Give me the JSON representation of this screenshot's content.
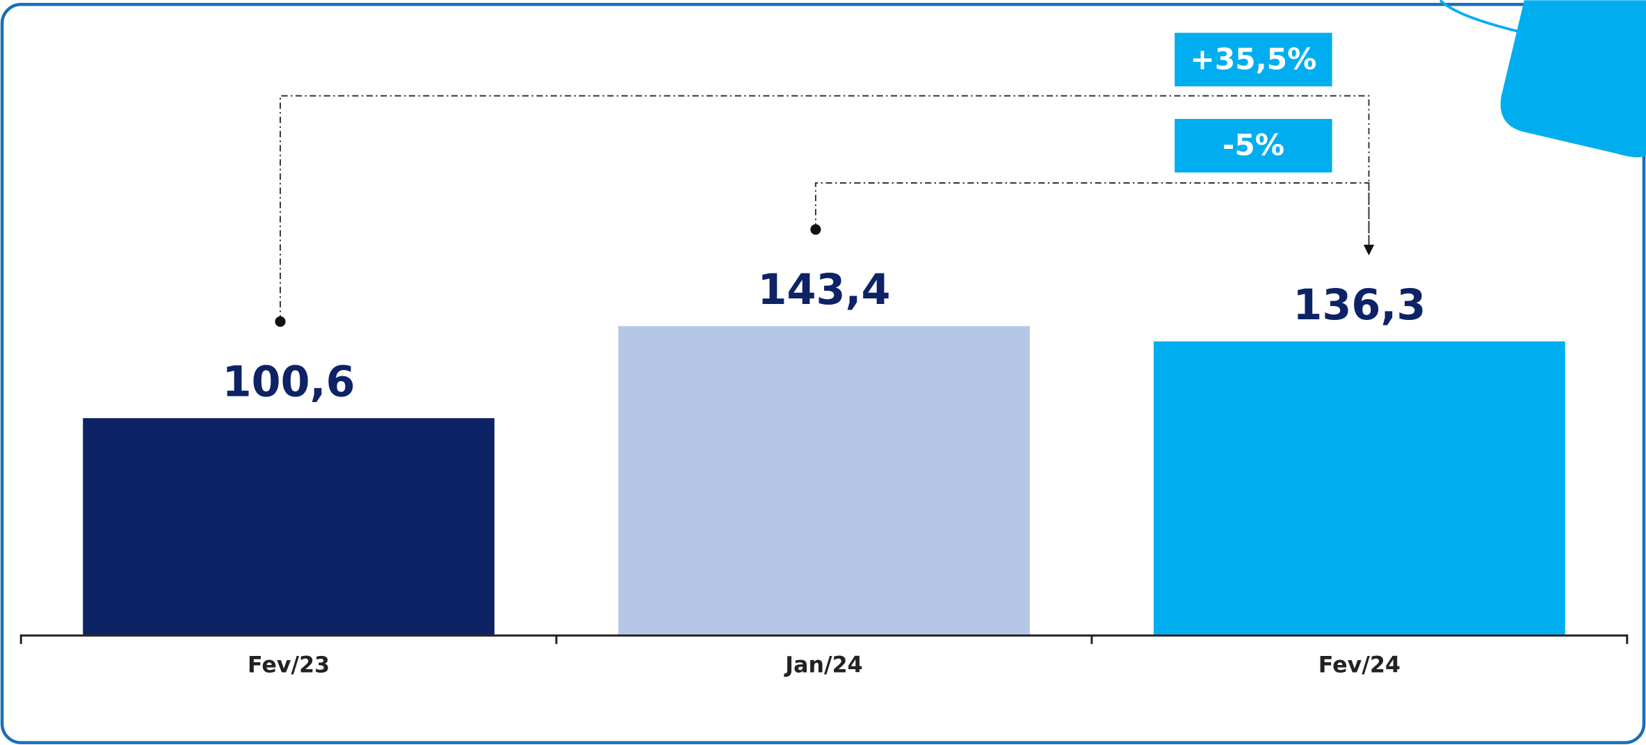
{
  "chart_data": {
    "type": "bar",
    "categories": [
      "Fev/23",
      "Jan/24",
      "Fev/24"
    ],
    "values": [
      100.6,
      143.4,
      136.3
    ],
    "value_labels": [
      "100,6",
      "143,4",
      "136,3"
    ],
    "colors": [
      "#0d2366",
      "#b5c7e7",
      "#00aeef"
    ],
    "ylim": [
      0,
      200
    ],
    "annotations": [
      "+35,5%",
      "-5%"
    ]
  }
}
